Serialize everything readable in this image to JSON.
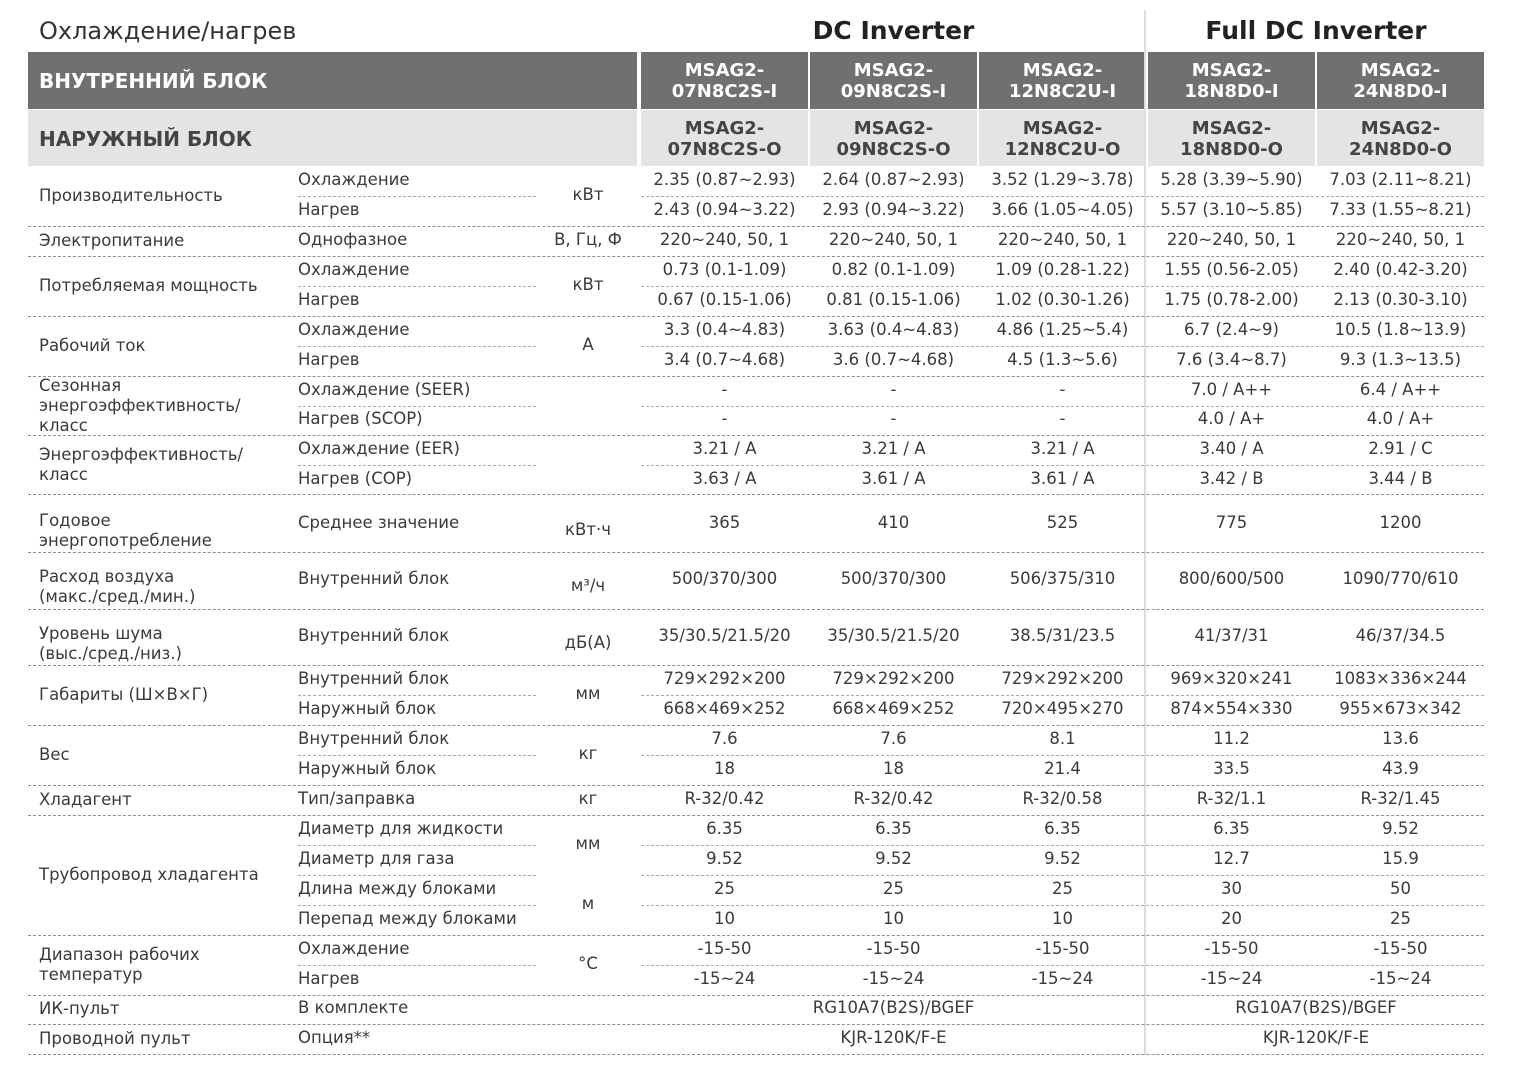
{
  "page": {
    "title": "Охлаждение/нагрев",
    "groups": [
      "DC Inverter",
      "Full DC Inverter"
    ]
  },
  "header": {
    "indoor_label": "ВНУТРЕННИЙ БЛОК",
    "outdoor_label": "НАРУЖНЫЙ БЛОК",
    "indoor_models": [
      [
        "MSAG2-",
        "07N8C2S-I"
      ],
      [
        "MSAG2-",
        "09N8C2S-I"
      ],
      [
        "MSAG2-",
        "12N8C2U-I"
      ],
      [
        "MSAG2-",
        "18N8D0-I"
      ],
      [
        "MSAG2-",
        "24N8D0-I"
      ]
    ],
    "outdoor_models": [
      [
        "MSAG2-",
        "07N8C2S-O"
      ],
      [
        "MSAG2-",
        "09N8C2S-O"
      ],
      [
        "MSAG2-",
        "12N8C2U-O"
      ],
      [
        "MSAG2-",
        "18N8D0-O"
      ],
      [
        "MSAG2-",
        "24N8D0-O"
      ]
    ]
  },
  "groups": [
    {
      "label": [
        "Производительность"
      ],
      "unit": "кВт",
      "rows": [
        {
          "param": "Охлаждение",
          "values": [
            "2.35 (0.87~2.93)",
            "2.64 (0.87~2.93)",
            "3.52 (1.29~3.78)",
            "5.28 (3.39~5.90)",
            "7.03 (2.11~8.21)"
          ]
        },
        {
          "param": "Нагрев",
          "values": [
            "2.43 (0.94~3.22)",
            "2.93 (0.94~3.22)",
            "3.66 (1.05~4.05)",
            "5.57 (3.10~5.85)",
            "7.33 (1.55~8.21)"
          ]
        }
      ]
    },
    {
      "label": [
        "Электропитание"
      ],
      "unit": "В, Гц, Ф",
      "rows": [
        {
          "param": "Однофазное",
          "values": [
            "220~240, 50, 1",
            "220~240, 50, 1",
            "220~240, 50, 1",
            "220~240, 50, 1",
            "220~240, 50, 1"
          ]
        }
      ]
    },
    {
      "label": [
        "Потребляемая мощность"
      ],
      "unit": "кВт",
      "rows": [
        {
          "param": "Охлаждение",
          "values": [
            "0.73 (0.1-1.09)",
            "0.82 (0.1-1.09)",
            "1.09 (0.28-1.22)",
            "1.55 (0.56-2.05)",
            "2.40 (0.42-3.20)"
          ]
        },
        {
          "param": "Нагрев",
          "values": [
            "0.67 (0.15-1.06)",
            "0.81 (0.15-1.06)",
            "1.02 (0.30-1.26)",
            "1.75 (0.78-2.00)",
            "2.13 (0.30-3.10)"
          ]
        }
      ]
    },
    {
      "label": [
        "Рабочий ток"
      ],
      "unit": "А",
      "rows": [
        {
          "param": "Охлаждение",
          "values": [
            "3.3 (0.4~4.83)",
            "3.63 (0.4~4.83)",
            "4.86 (1.25~5.4)",
            "6.7 (2.4~9)",
            "10.5 (1.8~13.9)"
          ]
        },
        {
          "param": "Нагрев",
          "values": [
            "3.4 (0.7~4.68)",
            "3.6 (0.7~4.68)",
            "4.5 (1.3~5.6)",
            "7.6 (3.4~8.7)",
            "9.3 (1.3~13.5)"
          ]
        }
      ]
    },
    {
      "label": [
        "Сезонная",
        "энергоэффективность/",
        "класс"
      ],
      "unit": "",
      "rows": [
        {
          "param": "Охлаждение (SEER)",
          "values": [
            "-",
            "-",
            "-",
            "7.0 / A++",
            "6.4 / A++"
          ]
        },
        {
          "param": "Нагрев (SCOP)",
          "values": [
            "-",
            "-",
            "-",
            "4.0 / A+",
            "4.0 / A+"
          ]
        }
      ]
    },
    {
      "label": [
        "Энергоэффективность/",
        "класс"
      ],
      "unit": "",
      "rows": [
        {
          "param": "Охлаждение (EER)",
          "values": [
            "3.21 / A",
            "3.21 / A",
            "3.21 / A",
            "3.40 / A",
            "2.91 / C"
          ]
        },
        {
          "param": "Нагрев (COP)",
          "values": [
            "3.63 / A",
            "3.61 / A",
            "3.61 / A",
            "3.42 / B",
            "3.44 / B"
          ]
        }
      ]
    },
    {
      "label": [
        "Годовое",
        "энергопотребление"
      ],
      "unit": "кВт·ч",
      "rows": [
        {
          "param": "Среднее значение",
          "values": [
            "365",
            "410",
            "525",
            "775",
            "1200"
          ]
        }
      ]
    },
    {
      "label": [
        "Расход воздуха",
        "(макс./сред./мин.)"
      ],
      "unit": "м³/ч",
      "rows": [
        {
          "param": "Внутренний блок",
          "values": [
            "500/370/300",
            "500/370/300",
            "506/375/310",
            "800/600/500",
            "1090/770/610"
          ]
        }
      ]
    },
    {
      "label": [
        "Уровень шума",
        "(выс./сред./низ.)"
      ],
      "unit": "дБ(А)",
      "rows": [
        {
          "param": "Внутренний блок",
          "values": [
            "35/30.5/21.5/20",
            "35/30.5/21.5/20",
            "38.5/31/23.5",
            "41/37/31",
            "46/37/34.5"
          ]
        }
      ]
    },
    {
      "label": [
        "Габариты (Ш×В×Г)"
      ],
      "unit": "мм",
      "rows": [
        {
          "param": "Внутренний блок",
          "values": [
            "729×292×200",
            "729×292×200",
            "729×292×200",
            "969×320×241",
            "1083×336×244"
          ]
        },
        {
          "param": "Наружный блок",
          "values": [
            "668×469×252",
            "668×469×252",
            "720×495×270",
            "874×554×330",
            "955×673×342"
          ]
        }
      ]
    },
    {
      "label": [
        "Вес"
      ],
      "unit": "кг",
      "rows": [
        {
          "param": "Внутренний блок",
          "values": [
            "7.6",
            "7.6",
            "8.1",
            "11.2",
            "13.6"
          ]
        },
        {
          "param": "Наружный блок",
          "values": [
            "18",
            "18",
            "21.4",
            "33.5",
            "43.9"
          ]
        }
      ]
    },
    {
      "label": [
        "Хладагент"
      ],
      "unit": "кг",
      "rows": [
        {
          "param": "Тип/заправка",
          "values": [
            "R-32/0.42",
            "R-32/0.42",
            "R-32/0.58",
            "R-32/1.1",
            "R-32/1.45"
          ]
        }
      ]
    },
    {
      "label": [
        "Трубопровод хладагента"
      ],
      "unit": "",
      "rows": [
        {
          "param": "Диаметр для жидкости",
          "values": [
            "6.35",
            "6.35",
            "6.35",
            "6.35",
            "9.52"
          ]
        },
        {
          "param": "Диаметр для газа",
          "values": [
            "9.52",
            "9.52",
            "9.52",
            "12.7",
            "15.9"
          ]
        },
        {
          "param": "Длина между блоками",
          "values": [
            "25",
            "25",
            "25",
            "30",
            "50"
          ]
        },
        {
          "param": "Перепад между блоками",
          "values": [
            "10",
            "10",
            "10",
            "20",
            "25"
          ]
        }
      ]
    },
    {
      "label": [
        "Диапазон рабочих",
        "температур"
      ],
      "unit": "°С",
      "rows": [
        {
          "param": "Охлаждение",
          "values": [
            "-15-50",
            "-15-50",
            "-15-50",
            "-15-50",
            "-15-50"
          ]
        },
        {
          "param": "Нагрев",
          "values": [
            "-15~24",
            "-15~24",
            "-15~24",
            "-15~24",
            "-15~24"
          ]
        }
      ]
    },
    {
      "label": [
        "ИК-пульт"
      ],
      "unit": "",
      "rows": [
        {
          "param": "В комплекте",
          "spans": [
            "RG10A7(B2S)/BGEF",
            "RG10A7(B2S)/BGEF"
          ]
        }
      ]
    },
    {
      "label": [
        "Проводной пульт"
      ],
      "unit": "",
      "rows": [
        {
          "param": "Опция**",
          "spans": [
            "KJR-120K/F-E",
            "KJR-120K/F-E"
          ]
        }
      ]
    }
  ],
  "piping_units": [
    "мм",
    "м"
  ]
}
